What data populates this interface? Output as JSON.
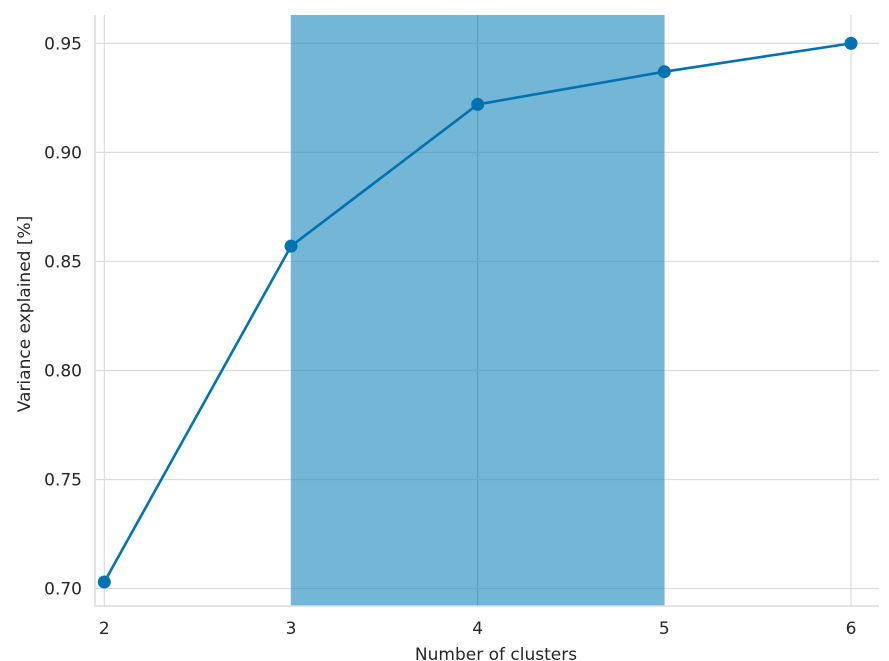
{
  "chart_data": {
    "type": "line",
    "xlabel": "Number of clusters",
    "ylabel": "Variance explained [%]",
    "xlim": [
      1.95,
      6.15
    ],
    "ylim": [
      0.692,
      0.963
    ],
    "grid": true,
    "x_ticks": [
      "2",
      "3",
      "4",
      "5",
      "6"
    ],
    "y_ticks": [
      "0.70",
      "0.75",
      "0.80",
      "0.85",
      "0.90",
      "0.95"
    ],
    "series": [
      {
        "x": [
          2,
          3,
          4,
          5,
          6
        ],
        "values": [
          0.703,
          0.857,
          0.922,
          0.937,
          0.95
        ]
      }
    ],
    "highlight_span": {
      "x_start": 3,
      "x_end": 5
    },
    "colors": {
      "line": "#0072b2",
      "span": "#74b6d6",
      "grid": "#dcdcdc",
      "text": "#262626"
    }
  }
}
